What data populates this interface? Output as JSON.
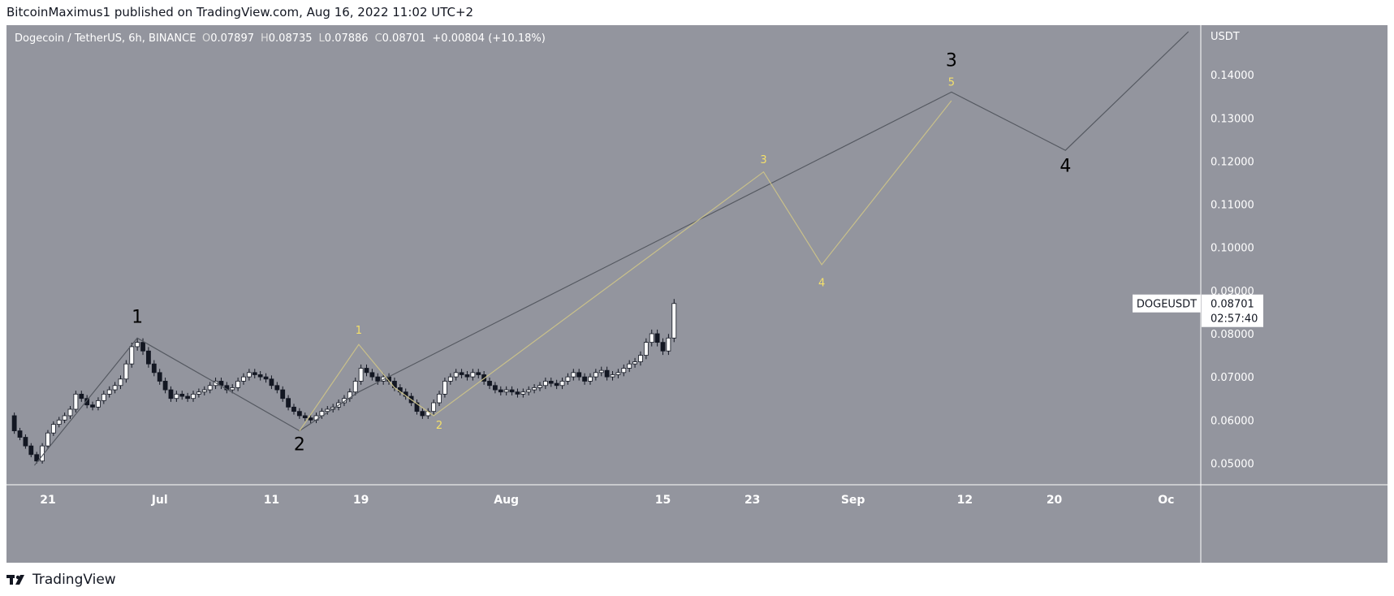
{
  "header": {
    "published_text": "BitcoinMaximus1 published on TradingView.com, Aug 16, 2022 11:02 UTC+2"
  },
  "footer": {
    "brand": "TradingView",
    "logo_icon": "tradingview-logo-icon"
  },
  "chart_data": {
    "type": "candlestick",
    "symbol_line": {
      "name": "Dogecoin / TetherUS, 6h, BINANCE",
      "o_label": "O",
      "o_value": "0.07897",
      "h_label": "H",
      "h_value": "0.08735",
      "l_label": "L",
      "l_value": "0.07886",
      "c_label": "C",
      "c_value": "0.08701",
      "change": "+0.00804 (+10.18%)"
    },
    "y_axis": {
      "currency": "USDT",
      "ticks": [
        "0.14000",
        "0.13000",
        "0.12000",
        "0.11000",
        "0.10000",
        "0.09000",
        "0.08000",
        "0.07000",
        "0.06000",
        "0.05000"
      ],
      "range": [
        0.045,
        0.1515
      ]
    },
    "x_axis": {
      "ticks": [
        "21",
        "Jul",
        "11",
        "19",
        "Aug",
        "15",
        "23",
        "Sep",
        "12",
        "20",
        "Oc"
      ],
      "tick_days": [
        21,
        31,
        41,
        49,
        62,
        76,
        84,
        93,
        103,
        111,
        121
      ],
      "day_zero": "2022-05-31",
      "range_days": [
        17.3,
        124.1
      ]
    },
    "price_label": {
      "symbol": "DOGEUSDT",
      "price": "0.08701",
      "countdown": "02:57:40",
      "value": 0.08701
    },
    "close_series": [
      [
        17.6,
        0.061
      ],
      [
        18.0,
        0.0575
      ],
      [
        18.5,
        0.056
      ],
      [
        19.0,
        0.054
      ],
      [
        19.5,
        0.052
      ],
      [
        20.0,
        0.0505
      ],
      [
        20.5,
        0.054
      ],
      [
        21.0,
        0.057
      ],
      [
        21.5,
        0.059
      ],
      [
        22.0,
        0.06
      ],
      [
        22.5,
        0.061
      ],
      [
        23.0,
        0.0625
      ],
      [
        23.5,
        0.066
      ],
      [
        24.0,
        0.065
      ],
      [
        24.5,
        0.0635
      ],
      [
        25.0,
        0.063
      ],
      [
        25.5,
        0.0645
      ],
      [
        26.0,
        0.066
      ],
      [
        26.5,
        0.067
      ],
      [
        27.0,
        0.068
      ],
      [
        27.5,
        0.0695
      ],
      [
        28.0,
        0.073
      ],
      [
        28.5,
        0.077
      ],
      [
        29.0,
        0.078
      ],
      [
        29.5,
        0.076
      ],
      [
        30.0,
        0.073
      ],
      [
        30.5,
        0.071
      ],
      [
        31.0,
        0.069
      ],
      [
        31.5,
        0.067
      ],
      [
        32.0,
        0.065
      ],
      [
        32.5,
        0.066
      ],
      [
        33.0,
        0.0655
      ],
      [
        33.5,
        0.065
      ],
      [
        34.0,
        0.066
      ],
      [
        34.5,
        0.0665
      ],
      [
        35.0,
        0.067
      ],
      [
        35.5,
        0.068
      ],
      [
        36.0,
        0.069
      ],
      [
        36.5,
        0.068
      ],
      [
        37.0,
        0.067
      ],
      [
        37.5,
        0.0675
      ],
      [
        38.0,
        0.069
      ],
      [
        38.5,
        0.07
      ],
      [
        39.0,
        0.071
      ],
      [
        39.5,
        0.0705
      ],
      [
        40.0,
        0.07
      ],
      [
        40.5,
        0.0695
      ],
      [
        41.0,
        0.068
      ],
      [
        41.5,
        0.067
      ],
      [
        42.0,
        0.065
      ],
      [
        42.5,
        0.063
      ],
      [
        43.0,
        0.062
      ],
      [
        43.5,
        0.061
      ],
      [
        44.0,
        0.0605
      ],
      [
        44.5,
        0.06
      ],
      [
        45.0,
        0.061
      ],
      [
        45.5,
        0.062
      ],
      [
        46.0,
        0.0625
      ],
      [
        46.5,
        0.063
      ],
      [
        47.0,
        0.064
      ],
      [
        47.5,
        0.065
      ],
      [
        48.0,
        0.0665
      ],
      [
        48.5,
        0.069
      ],
      [
        49.0,
        0.072
      ],
      [
        49.5,
        0.071
      ],
      [
        50.0,
        0.07
      ],
      [
        50.5,
        0.069
      ],
      [
        51.0,
        0.07
      ],
      [
        51.5,
        0.069
      ],
      [
        52.0,
        0.0675
      ],
      [
        52.5,
        0.0665
      ],
      [
        53.0,
        0.0655
      ],
      [
        53.5,
        0.064
      ],
      [
        54.0,
        0.062
      ],
      [
        54.5,
        0.061
      ],
      [
        55.0,
        0.062
      ],
      [
        55.5,
        0.064
      ],
      [
        56.0,
        0.066
      ],
      [
        56.5,
        0.069
      ],
      [
        57.0,
        0.07
      ],
      [
        57.5,
        0.071
      ],
      [
        58.0,
        0.0705
      ],
      [
        58.5,
        0.07
      ],
      [
        59.0,
        0.071
      ],
      [
        59.5,
        0.0705
      ],
      [
        60.0,
        0.069
      ],
      [
        60.5,
        0.068
      ],
      [
        61.0,
        0.067
      ],
      [
        61.5,
        0.0665
      ],
      [
        62.0,
        0.067
      ],
      [
        62.5,
        0.0665
      ],
      [
        63.0,
        0.066
      ],
      [
        63.5,
        0.0665
      ],
      [
        64.0,
        0.067
      ],
      [
        64.5,
        0.0675
      ],
      [
        65.0,
        0.068
      ],
      [
        65.5,
        0.069
      ],
      [
        66.0,
        0.0685
      ],
      [
        66.5,
        0.068
      ],
      [
        67.0,
        0.069
      ],
      [
        67.5,
        0.07
      ],
      [
        68.0,
        0.071
      ],
      [
        68.5,
        0.07
      ],
      [
        69.0,
        0.069
      ],
      [
        69.5,
        0.07
      ],
      [
        70.0,
        0.071
      ],
      [
        70.5,
        0.0715
      ],
      [
        71.0,
        0.07
      ],
      [
        71.5,
        0.0705
      ],
      [
        72.0,
        0.071
      ],
      [
        72.5,
        0.072
      ],
      [
        73.0,
        0.073
      ],
      [
        73.5,
        0.0735
      ],
      [
        74.0,
        0.075
      ],
      [
        74.5,
        0.078
      ],
      [
        75.0,
        0.08
      ],
      [
        75.5,
        0.078
      ],
      [
        76.0,
        0.076
      ],
      [
        76.5,
        0.079
      ],
      [
        77.0,
        0.087
      ]
    ],
    "wave_lines": [
      {
        "name": "primary-wave-count",
        "color": "#555961",
        "points": [
          [
            19.8,
            0.0495
          ],
          [
            29.0,
            0.079
          ],
          [
            43.5,
            0.0575
          ],
          [
            48.8,
            0.0665
          ],
          [
            101.8,
            0.136
          ],
          [
            112.0,
            0.1225
          ],
          [
            123.0,
            0.15
          ]
        ]
      },
      {
        "name": "secondary-wave-count",
        "color": "#c9c08a",
        "points": [
          [
            43.5,
            0.0575
          ],
          [
            48.8,
            0.0775
          ],
          [
            52.0,
            0.0675
          ],
          [
            55.5,
            0.061
          ],
          [
            85.0,
            0.1175
          ],
          [
            90.2,
            0.096
          ],
          [
            101.8,
            0.134
          ]
        ]
      }
    ],
    "wave_labels": [
      {
        "text": "1",
        "day": 29.0,
        "price": 0.0825,
        "color": "#000000",
        "size": 22
      },
      {
        "text": "2",
        "day": 43.5,
        "price": 0.053,
        "color": "#000000",
        "size": 22
      },
      {
        "text": "3",
        "day": 101.8,
        "price": 0.142,
        "color": "#000000",
        "size": 22
      },
      {
        "text": "4",
        "day": 112.0,
        "price": 0.1175,
        "color": "#000000",
        "size": 22
      },
      {
        "text": "1",
        "day": 48.8,
        "price": 0.08,
        "color": "#f4e06a",
        "size": 13
      },
      {
        "text": "2",
        "day": 56.0,
        "price": 0.058,
        "color": "#f4e06a",
        "size": 13
      },
      {
        "text": "3",
        "day": 85.0,
        "price": 0.1195,
        "color": "#f4e06a",
        "size": 13
      },
      {
        "text": "4",
        "day": 90.2,
        "price": 0.091,
        "color": "#f4e06a",
        "size": 13
      },
      {
        "text": "5",
        "day": 101.8,
        "price": 0.1375,
        "color": "#f4e06a",
        "size": 13
      }
    ],
    "colors": {
      "background": "#93959e",
      "axis_line": "#ffffff",
      "candle": "#131722",
      "axis_text": "#ffffff"
    }
  }
}
